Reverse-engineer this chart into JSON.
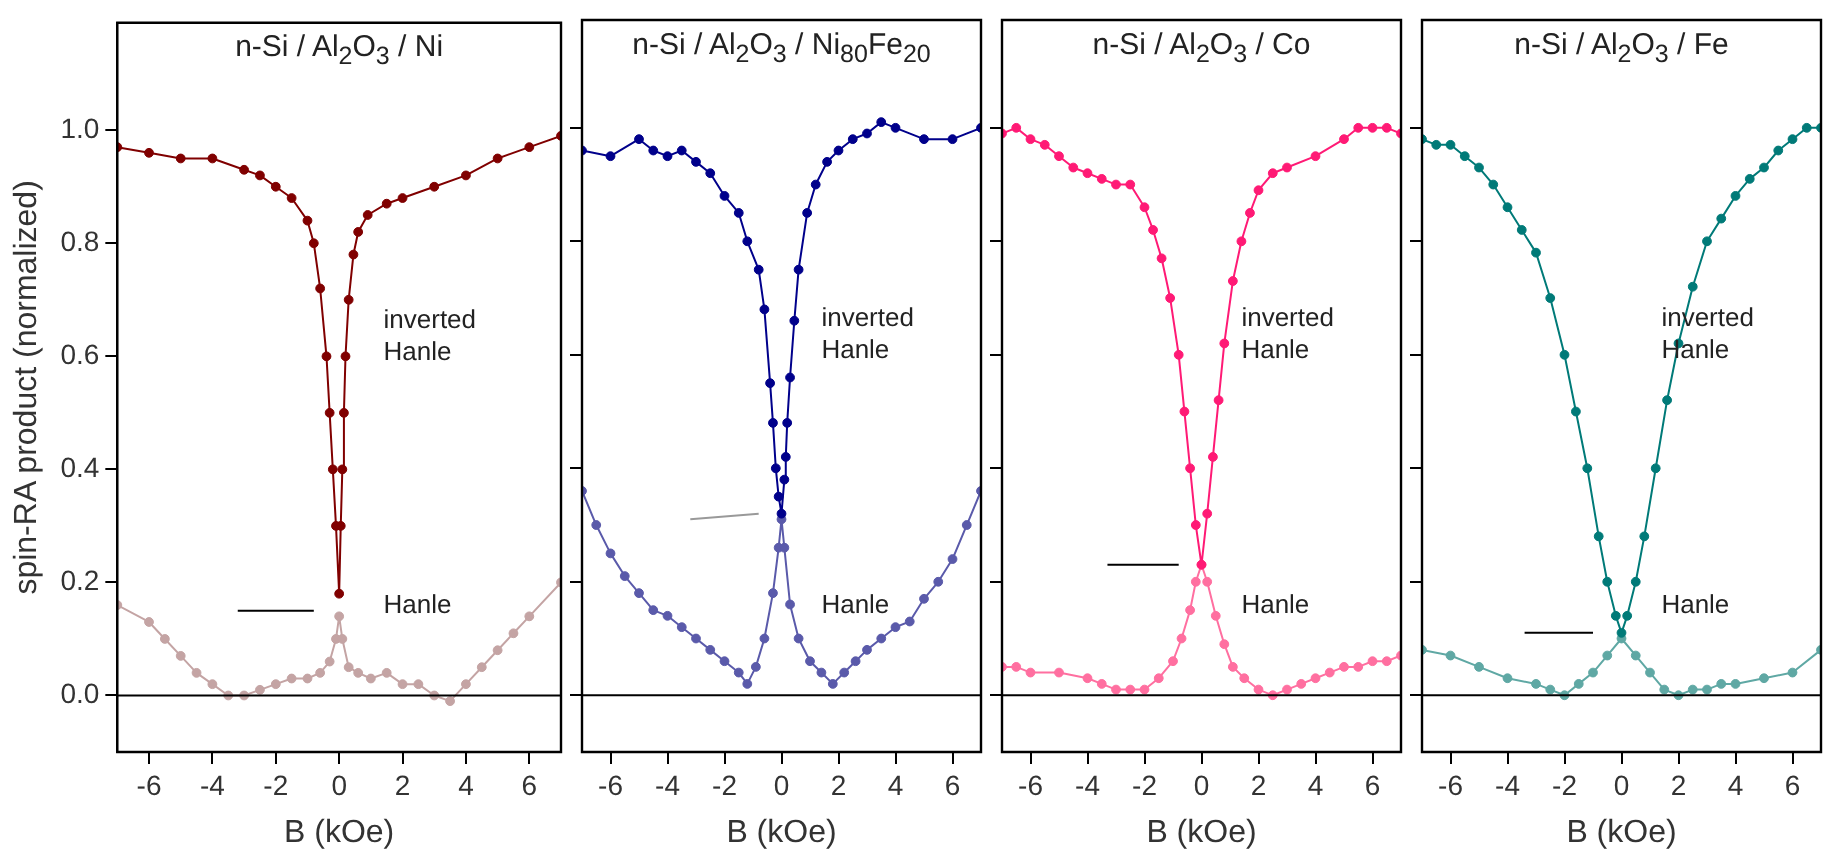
{
  "chart_data": [
    {
      "type": "line",
      "title": "n-Si / Al$_{2}$O$_{3}$ / Ni",
      "xlabel": "B (kOe)",
      "ylabel": "spin-RA product (normalized)",
      "xlim": [
        -7,
        7
      ],
      "ylim": [
        -0.1,
        1.19
      ],
      "xticks": [
        -6,
        -4,
        -2,
        0,
        2,
        4,
        6
      ],
      "yticks": [
        {
          "value": 0,
          "label": "0.0"
        },
        {
          "value": 0.2,
          "label": "0.2"
        },
        {
          "value": 0.4,
          "label": "0.4"
        },
        {
          "value": 0.6,
          "label": "0.6"
        },
        {
          "value": 0.8,
          "label": "0.8"
        },
        {
          "value": 1,
          "label": "1.0"
        }
      ],
      "grid": false,
      "legend": false,
      "marker": "circle",
      "ref_lines": [
        {
          "axis": "y",
          "value": 0,
          "color": "#000000"
        }
      ],
      "annotations": [
        "inverted Hanle",
        "Hanle"
      ],
      "series": [
        {
          "color": "#800000",
          "x": [
            -7,
            -6,
            -5,
            -4,
            -3,
            -2.5,
            -2,
            -1.5,
            -1,
            -0.8,
            -0.6,
            -0.4,
            -0.3,
            -0.2,
            -0.1,
            0,
            0.05,
            0.1,
            0.15,
            0.2,
            0.3,
            0.45,
            0.6,
            0.9,
            1.5,
            2,
            3,
            4,
            5,
            6,
            7
          ],
          "values": [
            0.97,
            0.96,
            0.95,
            0.95,
            0.93,
            0.92,
            0.9,
            0.88,
            0.84,
            0.8,
            0.72,
            0.6,
            0.5,
            0.4,
            0.3,
            0.18,
            0.3,
            0.4,
            0.5,
            0.6,
            0.7,
            0.78,
            0.82,
            0.85,
            0.87,
            0.88,
            0.9,
            0.92,
            0.95,
            0.97,
            0.99
          ]
        },
        {
          "color": "#c4a4a4",
          "x": [
            -7,
            -6,
            -5.5,
            -5,
            -4.5,
            -4,
            -3.5,
            -3,
            -2.5,
            -2,
            -1.5,
            -1,
            -0.6,
            -0.3,
            -0.1,
            0,
            0.1,
            0.3,
            0.6,
            1,
            1.5,
            2,
            2.5,
            3,
            3.5,
            4,
            4.5,
            5,
            5.5,
            6,
            7
          ],
          "values": [
            0.16,
            0.13,
            0.1,
            0.07,
            0.04,
            0.02,
            0,
            0,
            0.01,
            0.02,
            0.03,
            0.03,
            0.04,
            0.06,
            0.1,
            0.14,
            0.1,
            0.05,
            0.04,
            0.03,
            0.04,
            0.02,
            0.02,
            0,
            -0.01,
            0.02,
            0.05,
            0.08,
            0.11,
            0.14,
            0.2
          ]
        },
        {
          "color": "#000000",
          "marker": "none",
          "x": [
            -3.2,
            -0.8
          ],
          "values": [
            0.15,
            0.15
          ]
        }
      ]
    },
    {
      "type": "line",
      "title": "n-Si / Al$_{2}$O$_{3}$ / Ni$_{80}$Fe$_{20}$",
      "xlabel": "B (kOe)",
      "xlim": [
        -7,
        7
      ],
      "ylim": [
        -0.1,
        1.19
      ],
      "xticks": [
        -6,
        -4,
        -2,
        0,
        2,
        4,
        6
      ],
      "yticks": [
        0,
        0.2,
        0.4,
        0.6,
        0.8,
        1
      ],
      "tick_labels": "x",
      "grid": false,
      "legend": false,
      "marker": "circle",
      "ref_lines": [
        {
          "axis": "y",
          "value": 0,
          "color": "#000000"
        }
      ],
      "annotations": [
        "inverted Hanle",
        "Hanle"
      ],
      "series": [
        {
          "color": "#00008b",
          "x": [
            -7,
            -6,
            -5,
            -4.5,
            -4,
            -3.5,
            -3,
            -2.5,
            -2,
            -1.5,
            -1.2,
            -0.8,
            -0.6,
            -0.4,
            -0.3,
            -0.2,
            -0.1,
            0,
            0.1,
            0.15,
            0.2,
            0.3,
            0.45,
            0.6,
            0.9,
            1.2,
            1.6,
            2,
            2.5,
            3,
            3.5,
            4,
            5,
            6,
            7
          ],
          "values": [
            0.96,
            0.95,
            0.98,
            0.96,
            0.95,
            0.96,
            0.94,
            0.92,
            0.88,
            0.85,
            0.8,
            0.75,
            0.68,
            0.55,
            0.48,
            0.4,
            0.35,
            0.32,
            0.38,
            0.42,
            0.48,
            0.56,
            0.66,
            0.75,
            0.85,
            0.9,
            0.94,
            0.96,
            0.98,
            0.99,
            1.01,
            1,
            0.98,
            0.98,
            1
          ]
        },
        {
          "color": "#5a5aaa",
          "x": [
            -7,
            -6.5,
            -6,
            -5.5,
            -5,
            -4.5,
            -4,
            -3.5,
            -3,
            -2.5,
            -2,
            -1.5,
            -1.2,
            -0.9,
            -0.6,
            -0.3,
            -0.1,
            0,
            0.1,
            0.3,
            0.6,
            1,
            1.4,
            1.8,
            2.2,
            2.6,
            3,
            3.5,
            4,
            4.5,
            5,
            5.5,
            6,
            6.5,
            7
          ],
          "values": [
            0.36,
            0.3,
            0.25,
            0.21,
            0.18,
            0.15,
            0.14,
            0.12,
            0.1,
            0.08,
            0.06,
            0.04,
            0.02,
            0.05,
            0.1,
            0.18,
            0.26,
            0.31,
            0.26,
            0.16,
            0.1,
            0.06,
            0.04,
            0.02,
            0.04,
            0.06,
            0.08,
            0.1,
            0.12,
            0.13,
            0.17,
            0.2,
            0.24,
            0.3,
            0.36
          ]
        },
        {
          "color": "#999999",
          "marker": "none",
          "x": [
            -3.2,
            -0.8
          ],
          "values": [
            0.31,
            0.32
          ]
        }
      ]
    },
    {
      "type": "line",
      "title": "n-Si / Al$_{2}$O$_{3}$ / Co",
      "xlabel": "B (kOe)",
      "xlim": [
        -7,
        7
      ],
      "ylim": [
        -0.1,
        1.19
      ],
      "xticks": [
        -6,
        -4,
        -2,
        0,
        2,
        4,
        6
      ],
      "yticks": [
        0,
        0.2,
        0.4,
        0.6,
        0.8,
        1
      ],
      "tick_labels": "x",
      "grid": false,
      "legend": false,
      "marker": "circle",
      "ref_lines": [
        {
          "axis": "y",
          "value": 0,
          "color": "#000000"
        }
      ],
      "annotations": [
        "inverted Hanle",
        "Hanle"
      ],
      "series": [
        {
          "color": "#ff1a75",
          "x": [
            -7,
            -6.5,
            -6,
            -5.5,
            -5,
            -4.5,
            -4,
            -3.5,
            -3,
            -2.5,
            -2,
            -1.7,
            -1.4,
            -1.1,
            -0.8,
            -0.6,
            -0.4,
            -0.2,
            0,
            0.2,
            0.4,
            0.6,
            0.8,
            1.1,
            1.4,
            1.7,
            2,
            2.5,
            3,
            4,
            5,
            5.5,
            6,
            6.5,
            7
          ],
          "values": [
            0.99,
            1,
            0.98,
            0.97,
            0.95,
            0.93,
            0.92,
            0.91,
            0.9,
            0.9,
            0.86,
            0.82,
            0.77,
            0.7,
            0.6,
            0.5,
            0.4,
            0.3,
            0.23,
            0.32,
            0.42,
            0.52,
            0.62,
            0.73,
            0.8,
            0.85,
            0.89,
            0.92,
            0.93,
            0.95,
            0.98,
            1,
            1,
            1,
            0.99
          ]
        },
        {
          "color": "#ff6fa0",
          "x": [
            -7,
            -6.5,
            -6,
            -5,
            -4,
            -3.5,
            -3,
            -2.5,
            -2,
            -1.5,
            -1,
            -0.7,
            -0.4,
            -0.2,
            0,
            0.2,
            0.5,
            0.8,
            1.1,
            1.5,
            2,
            2.5,
            3,
            3.5,
            4,
            4.5,
            5,
            5.5,
            6,
            6.5,
            7
          ],
          "values": [
            0.05,
            0.05,
            0.04,
            0.04,
            0.03,
            0.02,
            0.01,
            0.01,
            0.01,
            0.03,
            0.06,
            0.1,
            0.15,
            0.2,
            0.23,
            0.2,
            0.14,
            0.09,
            0.05,
            0.03,
            0.01,
            0,
            0.01,
            0.02,
            0.03,
            0.04,
            0.05,
            0.05,
            0.06,
            0.06,
            0.07
          ]
        },
        {
          "color": "#000000",
          "marker": "none",
          "x": [
            -3.3,
            -0.8
          ],
          "values": [
            0.23,
            0.23
          ]
        }
      ]
    },
    {
      "type": "line",
      "title": "n-Si / Al$_{2}$O$_{3}$ / Fe",
      "xlabel": "B (kOe)",
      "xlim": [
        -7,
        7
      ],
      "ylim": [
        -0.1,
        1.19
      ],
      "xticks": [
        -6,
        -4,
        -2,
        0,
        2,
        4,
        6
      ],
      "yticks": [
        0,
        0.2,
        0.4,
        0.6,
        0.8,
        1
      ],
      "tick_labels": "x",
      "grid": false,
      "legend": false,
      "marker": "circle",
      "ref_lines": [
        {
          "axis": "y",
          "value": 0,
          "color": "#000000"
        }
      ],
      "annotations": [
        "inverted Hanle",
        "Hanle"
      ],
      "series": [
        {
          "color": "#007a78",
          "x": [
            -7,
            -6.5,
            -6,
            -5.5,
            -5,
            -4.5,
            -4,
            -3.5,
            -3,
            -2.5,
            -2,
            -1.6,
            -1.2,
            -0.8,
            -0.5,
            -0.2,
            0,
            0.2,
            0.5,
            0.8,
            1.2,
            1.6,
            2,
            2.5,
            3,
            3.5,
            4,
            4.5,
            5,
            5.5,
            6,
            6.5,
            7
          ],
          "values": [
            0.98,
            0.97,
            0.97,
            0.95,
            0.93,
            0.9,
            0.86,
            0.82,
            0.78,
            0.7,
            0.6,
            0.5,
            0.4,
            0.28,
            0.2,
            0.14,
            0.11,
            0.14,
            0.2,
            0.28,
            0.4,
            0.52,
            0.62,
            0.72,
            0.8,
            0.84,
            0.88,
            0.91,
            0.93,
            0.96,
            0.98,
            1,
            1
          ]
        },
        {
          "color": "#5fa8a4",
          "x": [
            -7,
            -6,
            -5,
            -4,
            -3,
            -2.5,
            -2,
            -1.5,
            -1,
            -0.5,
            0,
            0.5,
            1,
            1.5,
            2,
            2.5,
            3,
            3.5,
            4,
            5,
            6,
            7
          ],
          "values": [
            0.08,
            0.07,
            0.05,
            0.03,
            0.02,
            0.01,
            0,
            0.02,
            0.04,
            0.07,
            0.1,
            0.07,
            0.04,
            0.01,
            0,
            0.01,
            0.01,
            0.02,
            0.02,
            0.03,
            0.04,
            0.08
          ]
        },
        {
          "color": "#000000",
          "marker": "none",
          "x": [
            -3.4,
            -1
          ],
          "values": [
            0.11,
            0.11
          ]
        }
      ]
    }
  ]
}
